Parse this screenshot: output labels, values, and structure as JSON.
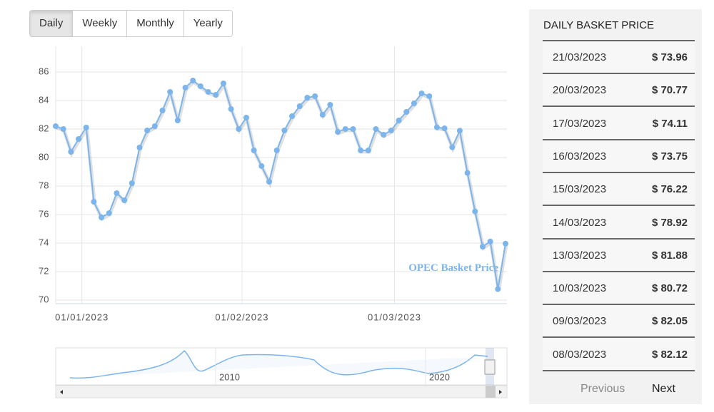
{
  "tabs": [
    "Daily",
    "Weekly",
    "Monthly",
    "Yearly"
  ],
  "chart_data": {
    "type": "line",
    "categories": [
      null,
      null,
      null,
      null,
      "01/01/2023",
      null,
      null,
      null,
      null,
      null,
      null,
      null,
      null,
      null,
      null,
      null,
      null,
      null,
      null,
      null,
      null,
      null,
      null,
      null,
      null,
      "01/02/2023",
      null,
      null,
      null,
      null,
      null,
      null,
      null,
      null,
      null,
      null,
      null,
      null,
      null,
      null,
      null,
      null,
      null,
      null,
      null,
      "01/03/2023",
      null,
      null,
      null,
      null,
      null,
      null,
      null,
      null,
      null,
      null,
      null,
      null,
      null,
      null
    ],
    "series": [
      {
        "name": "OPEC Basket Price",
        "color": "#7cb5ec",
        "values": [
          82.2,
          82.0,
          80.4,
          81.3,
          82.1,
          76.9,
          75.8,
          76.1,
          77.5,
          77.0,
          78.2,
          80.7,
          81.9,
          82.2,
          83.3,
          84.6,
          82.6,
          84.9,
          85.4,
          85.0,
          84.6,
          84.4,
          85.2,
          83.4,
          82.0,
          82.8,
          80.5,
          79.4,
          78.3,
          80.5,
          81.9,
          82.9,
          83.6,
          84.2,
          84.3,
          83.0,
          83.7,
          81.8,
          82.0,
          82.0,
          80.5,
          80.5,
          82.0,
          81.6,
          81.9,
          82.6,
          83.2,
          83.8,
          84.5,
          84.3,
          82.12,
          82.05,
          80.72,
          81.88,
          78.92,
          76.22,
          73.75,
          74.11,
          70.77,
          73.96
        ]
      }
    ],
    "ylim": [
      69.75,
      87.8
    ],
    "yticks": [
      70,
      72,
      74,
      76,
      78,
      80,
      82,
      84,
      86
    ],
    "grid": true
  },
  "navigator": {
    "labels": [
      "2010",
      "2020"
    ]
  },
  "table": {
    "title": "DAILY BASKET PRICE",
    "rows": [
      [
        "21/03/2023",
        "$ 73.96"
      ],
      [
        "20/03/2023",
        "$ 70.77"
      ],
      [
        "17/03/2023",
        "$ 74.11"
      ],
      [
        "16/03/2023",
        "$ 73.75"
      ],
      [
        "15/03/2023",
        "$ 76.22"
      ],
      [
        "14/03/2023",
        "$ 78.92"
      ],
      [
        "13/03/2023",
        "$ 81.88"
      ],
      [
        "10/03/2023",
        "$ 80.72"
      ],
      [
        "09/03/2023",
        "$ 82.05"
      ],
      [
        "08/03/2023",
        "$ 82.12"
      ]
    ]
  },
  "pagination": {
    "previous": "Previous",
    "next": "Next"
  }
}
